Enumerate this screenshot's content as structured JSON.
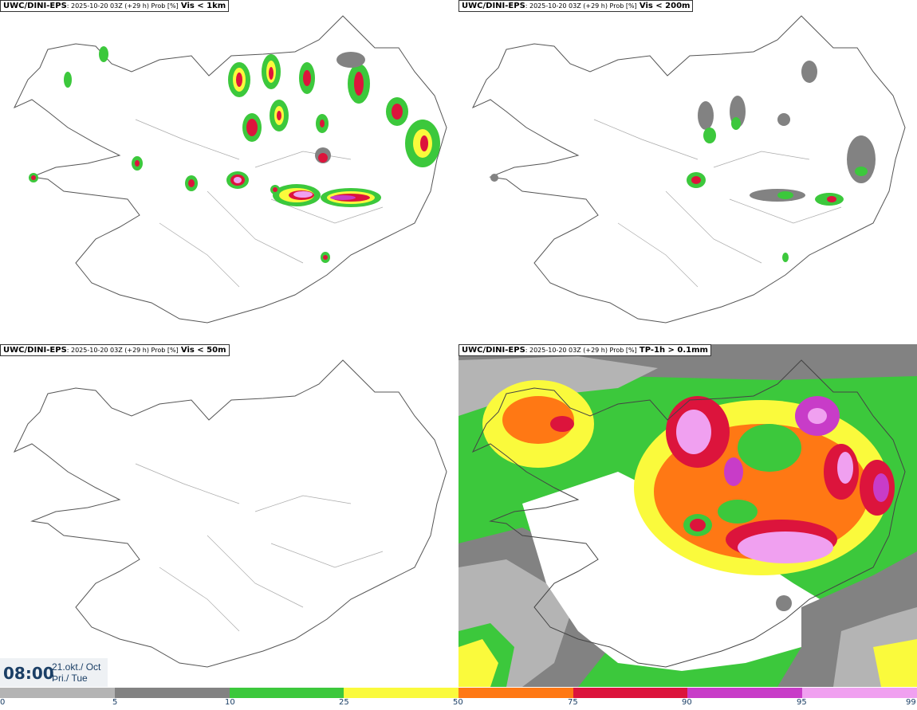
{
  "panels": [
    {
      "source": "UWC/DINI-EPS",
      "meta": ": 2025-10-20 03Z (+29 h) Prob [%]",
      "variable": "Vis < 1km"
    },
    {
      "source": "UWC/DINI-EPS",
      "meta": ": 2025-10-20 03Z (+29 h) Prob [%]",
      "variable": "Vis < 200m"
    },
    {
      "source": "UWC/DINI-EPS",
      "meta": ": 2025-10-20 03Z (+29 h) Prob [%]",
      "variable": "Vis < 50m"
    },
    {
      "source": "UWC/DINI-EPS",
      "meta": ": 2025-10-20 03Z (+29 h) Prob [%]",
      "variable": "TP-1h > 0.1mm"
    }
  ],
  "valid_time": {
    "time": "08:00",
    "date_line1": "21.okt./ Oct",
    "date_line2": "Þri./ Tue"
  },
  "colorbar": {
    "ticks": [
      "0",
      "5",
      "10",
      "25",
      "50",
      "75",
      "90",
      "95",
      "99"
    ],
    "colors": [
      "#ffffff",
      "#b4b4b4",
      "#828282",
      "#3cc83c",
      "#fafa3c",
      "#ff7814",
      "#dc143c",
      "#c83cc8",
      "#f0a0f0"
    ]
  }
}
